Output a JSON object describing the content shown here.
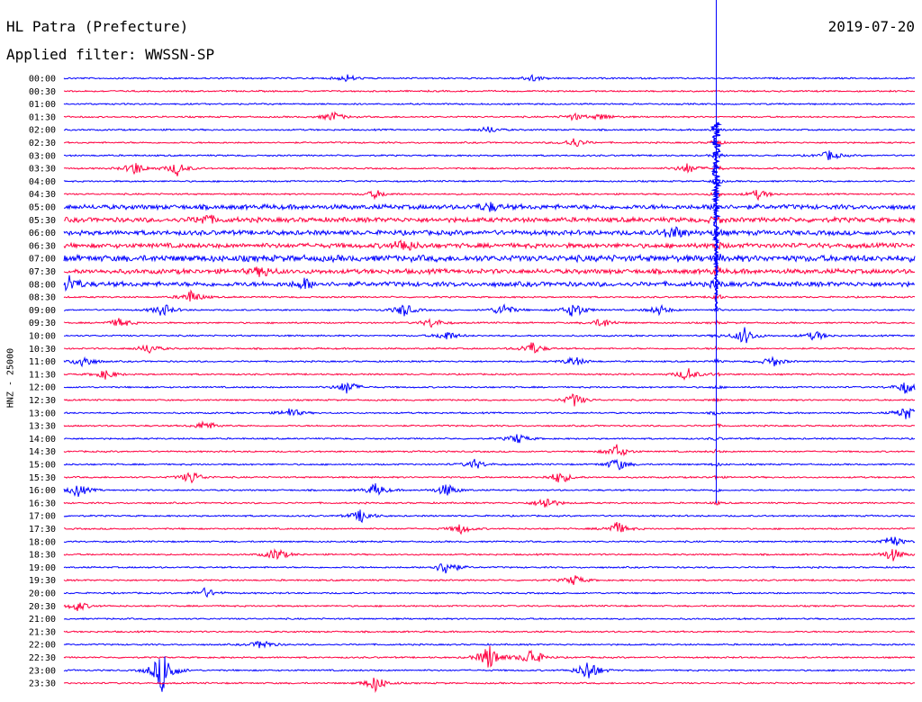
{
  "header": {
    "station": "HL Patra (Prefecture)",
    "filter": "Applied filter: WWSSN-SP",
    "date": "2019-07-20",
    "channel": "HNZ - 25000"
  },
  "colors": {
    "even_row": "#0000ff",
    "odd_row": "#ff0040"
  },
  "chart_data": {
    "type": "line",
    "title": "HL Patra (Prefecture)",
    "subtitle": "Applied filter: WWSSN-SP",
    "ylabel": "HNZ - 25000",
    "rows": [
      "00:00",
      "00:30",
      "01:00",
      "01:30",
      "02:00",
      "02:30",
      "03:00",
      "03:30",
      "04:00",
      "04:30",
      "05:00",
      "05:30",
      "06:00",
      "06:30",
      "07:00",
      "07:30",
      "08:00",
      "08:30",
      "09:00",
      "09:30",
      "10:00",
      "10:30",
      "11:00",
      "11:30",
      "12:00",
      "12:30",
      "13:00",
      "13:30",
      "14:00",
      "14:30",
      "15:00",
      "15:30",
      "16:00",
      "16:30",
      "17:00",
      "17:30",
      "18:00",
      "18:30",
      "19:00",
      "19:30",
      "20:00",
      "20:30",
      "21:00",
      "21:30",
      "22:00",
      "22:30",
      "23:00",
      "23:30"
    ],
    "row_duration_minutes": 30,
    "colors_alternate": [
      "#0000ff",
      "#ff0040"
    ],
    "noise_level": [
      1,
      1,
      1,
      1,
      1,
      1,
      1,
      1,
      1,
      1,
      3,
      3,
      3,
      3,
      4,
      3,
      3,
      1,
      1,
      1,
      1,
      1,
      1,
      1,
      1,
      1,
      1,
      1,
      1,
      1,
      1,
      1,
      1,
      1,
      1,
      1,
      1,
      1,
      1,
      1,
      1,
      1,
      1,
      1,
      1,
      1,
      1,
      1
    ],
    "events": [
      {
        "row": 0,
        "minute": 10.0,
        "amp": 4
      },
      {
        "row": 0,
        "minute": 16.5,
        "amp": 4
      },
      {
        "row": 3,
        "minute": 9.5,
        "amp": 6
      },
      {
        "row": 3,
        "minute": 18.0,
        "amp": 4
      },
      {
        "row": 3,
        "minute": 19.0,
        "amp": 4
      },
      {
        "row": 4,
        "minute": 15.0,
        "amp": 4
      },
      {
        "row": 5,
        "minute": 18.0,
        "amp": 6
      },
      {
        "row": 6,
        "minute": 27.0,
        "amp": 6
      },
      {
        "row": 7,
        "minute": 2.5,
        "amp": 8
      },
      {
        "row": 7,
        "minute": 4.0,
        "amp": 8
      },
      {
        "row": 7,
        "minute": 22.0,
        "amp": 6
      },
      {
        "row": 9,
        "minute": 11.0,
        "amp": 5
      },
      {
        "row": 9,
        "minute": 24.5,
        "amp": 6
      },
      {
        "row": 10,
        "minute": 15.0,
        "amp": 5
      },
      {
        "row": 11,
        "minute": 5.0,
        "amp": 6
      },
      {
        "row": 12,
        "minute": 21.5,
        "amp": 8
      },
      {
        "row": 13,
        "minute": 12.0,
        "amp": 8
      },
      {
        "row": 15,
        "minute": 7.0,
        "amp": 6
      },
      {
        "row": 16,
        "minute": 0.2,
        "amp": 10
      },
      {
        "row": 16,
        "minute": 8.5,
        "amp": 6
      },
      {
        "row": 17,
        "minute": 4.5,
        "amp": 8
      },
      {
        "row": 18,
        "minute": 3.5,
        "amp": 8
      },
      {
        "row": 18,
        "minute": 12.0,
        "amp": 8
      },
      {
        "row": 18,
        "minute": 15.5,
        "amp": 8
      },
      {
        "row": 18,
        "minute": 18.0,
        "amp": 10
      },
      {
        "row": 18,
        "minute": 21.0,
        "amp": 6
      },
      {
        "row": 19,
        "minute": 2.0,
        "amp": 6
      },
      {
        "row": 19,
        "minute": 13.0,
        "amp": 6
      },
      {
        "row": 19,
        "minute": 19.0,
        "amp": 6
      },
      {
        "row": 20,
        "minute": 13.5,
        "amp": 6
      },
      {
        "row": 20,
        "minute": 24.0,
        "amp": 10
      },
      {
        "row": 20,
        "minute": 26.5,
        "amp": 6
      },
      {
        "row": 21,
        "minute": 3.0,
        "amp": 6
      },
      {
        "row": 21,
        "minute": 16.5,
        "amp": 8
      },
      {
        "row": 22,
        "minute": 0.7,
        "amp": 8
      },
      {
        "row": 22,
        "minute": 18.0,
        "amp": 6
      },
      {
        "row": 22,
        "minute": 25.0,
        "amp": 6
      },
      {
        "row": 23,
        "minute": 1.5,
        "amp": 6
      },
      {
        "row": 23,
        "minute": 22.0,
        "amp": 8
      },
      {
        "row": 24,
        "minute": 10.0,
        "amp": 8
      },
      {
        "row": 24,
        "minute": 29.7,
        "amp": 8
      },
      {
        "row": 25,
        "minute": 18.0,
        "amp": 8
      },
      {
        "row": 26,
        "minute": 8.0,
        "amp": 6
      },
      {
        "row": 26,
        "minute": 29.7,
        "amp": 8
      },
      {
        "row": 27,
        "minute": 5.0,
        "amp": 6
      },
      {
        "row": 28,
        "minute": 16.0,
        "amp": 6
      },
      {
        "row": 29,
        "minute": 19.5,
        "amp": 8
      },
      {
        "row": 30,
        "minute": 14.5,
        "amp": 6
      },
      {
        "row": 30,
        "minute": 19.5,
        "amp": 8
      },
      {
        "row": 31,
        "minute": 4.5,
        "amp": 8
      },
      {
        "row": 31,
        "minute": 17.5,
        "amp": 8
      },
      {
        "row": 32,
        "minute": 0.5,
        "amp": 8
      },
      {
        "row": 32,
        "minute": 11.0,
        "amp": 8
      },
      {
        "row": 32,
        "minute": 13.5,
        "amp": 8
      },
      {
        "row": 33,
        "minute": 17.0,
        "amp": 8
      },
      {
        "row": 34,
        "minute": 10.5,
        "amp": 8
      },
      {
        "row": 35,
        "minute": 14.0,
        "amp": 6
      },
      {
        "row": 35,
        "minute": 19.5,
        "amp": 8
      },
      {
        "row": 36,
        "minute": 29.2,
        "amp": 8
      },
      {
        "row": 37,
        "minute": 7.5,
        "amp": 8
      },
      {
        "row": 37,
        "minute": 29.2,
        "amp": 8
      },
      {
        "row": 38,
        "minute": 13.5,
        "amp": 10
      },
      {
        "row": 39,
        "minute": 18.0,
        "amp": 6
      },
      {
        "row": 40,
        "minute": 5.0,
        "amp": 6
      },
      {
        "row": 41,
        "minute": 0.5,
        "amp": 6
      },
      {
        "row": 44,
        "minute": 7.0,
        "amp": 6
      },
      {
        "row": 45,
        "minute": 15.0,
        "amp": 16
      },
      {
        "row": 45,
        "minute": 16.5,
        "amp": 12
      },
      {
        "row": 46,
        "minute": 3.5,
        "amp": 28
      },
      {
        "row": 46,
        "minute": 18.5,
        "amp": 14
      },
      {
        "row": 47,
        "minute": 11.0,
        "amp": 10
      }
    ],
    "earthquake": {
      "start_row": 4,
      "end_row": 33,
      "minute": 23.0,
      "spike_top_row": 0
    }
  }
}
